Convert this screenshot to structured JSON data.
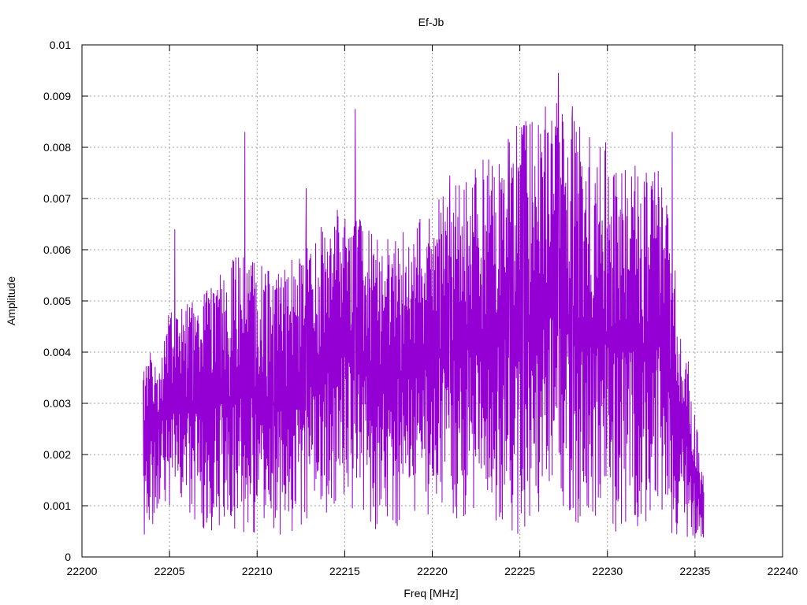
{
  "chart_data": {
    "type": "line",
    "title": "Ef-Jb",
    "xlabel": "Freq [MHz]",
    "ylabel": "Amplitude",
    "xlim": [
      22200,
      22240
    ],
    "ylim": [
      0,
      0.01
    ],
    "x_ticks": [
      "22200",
      "22205",
      "22210",
      "22215",
      "22220",
      "22225",
      "22230",
      "22235",
      "22240"
    ],
    "y_ticks": [
      "0",
      "0.001",
      "0.002",
      "0.003",
      "0.004",
      "0.005",
      "0.006",
      "0.007",
      "0.008",
      "0.009",
      "0.01"
    ],
    "grid": true,
    "grid_style": "dotted",
    "series": [
      {
        "color": "#9400d3",
        "x_start": 22203.5,
        "x_end": 22235.5,
        "envelope": {
          "x": [
            22203.5,
            22205,
            22207,
            22209,
            22211,
            22213,
            22215,
            22217,
            22219,
            22221,
            22223,
            22225,
            22227,
            22229,
            22231,
            22233,
            22234.5,
            22235.5
          ],
          "max": [
            0.0037,
            0.0048,
            0.0052,
            0.006,
            0.0055,
            0.0062,
            0.007,
            0.0062,
            0.0065,
            0.0072,
            0.0078,
            0.0085,
            0.009,
            0.0082,
            0.0076,
            0.0078,
            0.0042,
            0.0015
          ],
          "min": [
            0.0004,
            0.001,
            0.0004,
            0.0004,
            0.0004,
            0.0006,
            0.001,
            0.0004,
            0.0008,
            0.0008,
            0.0004,
            0.0004,
            0.0006,
            0.0004,
            0.0004,
            0.0006,
            0.0002,
            0.0003
          ]
        },
        "peaks": [
          {
            "x": 22205.3,
            "y": 0.0064
          },
          {
            "x": 22209.3,
            "y": 0.0083
          },
          {
            "x": 22212.8,
            "y": 0.0072
          },
          {
            "x": 22215.6,
            "y": 0.00875
          },
          {
            "x": 22221.0,
            "y": 0.00745
          },
          {
            "x": 22224.4,
            "y": 0.0081
          },
          {
            "x": 22225.2,
            "y": 0.0083
          },
          {
            "x": 22227.2,
            "y": 0.00945
          },
          {
            "x": 22228.0,
            "y": 0.0088
          },
          {
            "x": 22229.9,
            "y": 0.0081
          },
          {
            "x": 22230.5,
            "y": 0.0075
          },
          {
            "x": 22233.7,
            "y": 0.0083
          }
        ]
      }
    ]
  }
}
